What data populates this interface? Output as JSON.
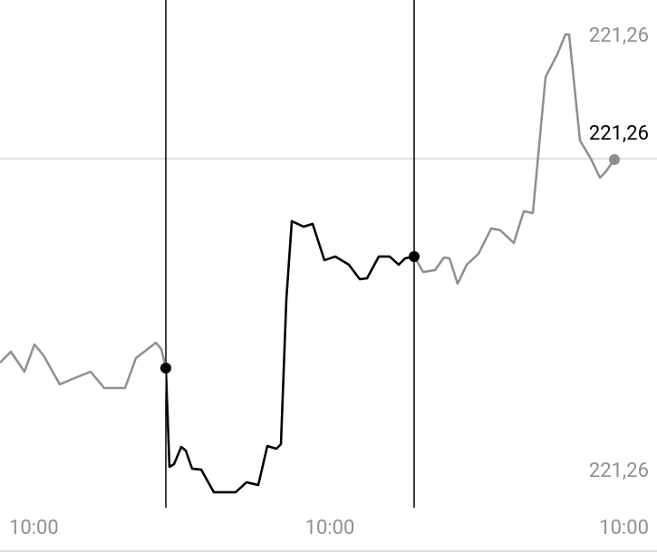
{
  "chart_data": {
    "type": "line",
    "x": [
      0,
      12,
      27,
      38,
      48,
      66,
      80,
      100,
      115,
      138,
      150,
      172,
      178,
      183,
      187,
      192,
      200,
      205,
      212,
      222,
      236,
      260,
      272,
      285,
      295,
      305,
      310,
      316,
      322,
      335,
      345,
      358,
      370,
      385,
      397,
      405,
      418,
      430,
      440,
      447,
      457,
      467,
      480,
      490,
      496,
      505,
      515,
      528,
      542,
      552,
      567,
      578,
      588,
      602,
      615,
      624,
      628,
      640,
      652,
      662,
      668,
      678
    ],
    "series": [
      {
        "color": "#8f8f8f",
        "highlight_color": "#000000",
        "values": [
          32,
          34.4,
          30,
          36,
          33.6,
          27.2,
          28.4,
          30,
          26.4,
          26.4,
          33,
          36.4,
          35,
          30.8,
          9,
          9.6,
          13.4,
          12.6,
          8.6,
          8.4,
          3.4,
          3.4,
          5.6,
          5,
          13.6,
          13,
          14,
          46,
          63.2,
          62,
          62.6,
          54.6,
          55.4,
          53.6,
          50.4,
          50.6,
          55.4,
          55.4,
          53.6,
          55,
          55.4,
          52,
          52.4,
          55.2,
          55,
          49.4,
          53.6,
          56,
          61.6,
          61.2,
          58.4,
          65.4,
          65,
          95,
          100,
          104.4,
          104.4,
          81,
          77,
          72.8,
          74,
          76.8
        ]
      }
    ],
    "cursors": [
      183,
      457
    ],
    "reference": 77,
    "labels": {
      "high": "221,26",
      "current": "221,26",
      "low": "221,26"
    },
    "x_labels": [
      "10:00",
      "10:00",
      "10:00"
    ],
    "xlim": [
      0,
      725
    ],
    "ylim": [
      0,
      112
    ]
  }
}
